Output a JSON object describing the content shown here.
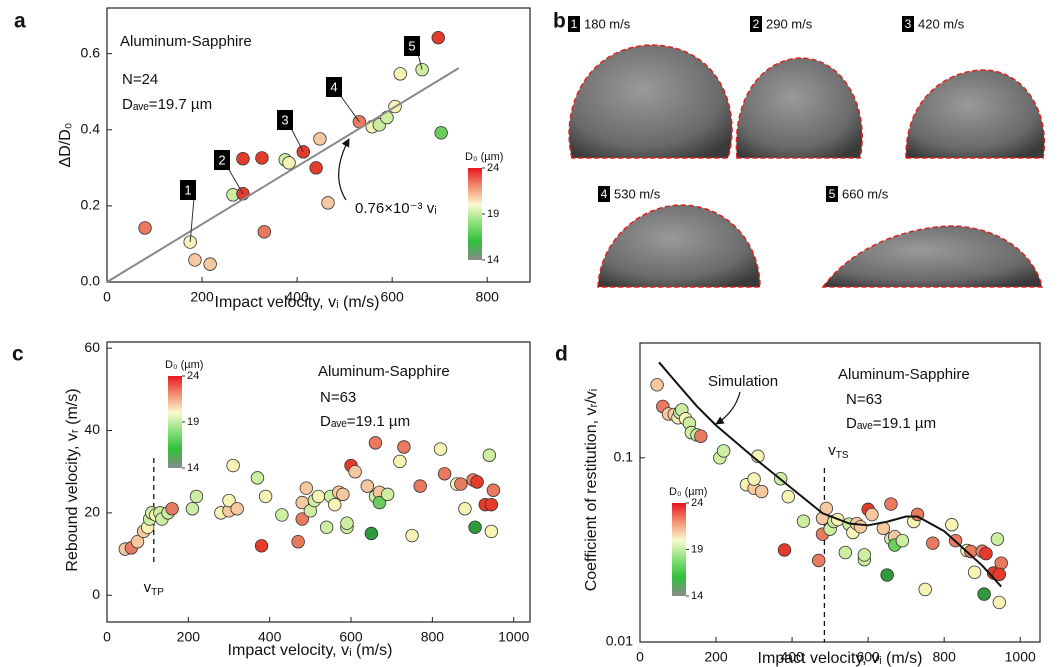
{
  "chart_data": [
    {
      "type": "scatter",
      "panel_label": "a",
      "x_label": "Impact velocity, vᵢ (m/s)",
      "y_label": "ΔD/D₀",
      "notes": [
        "Aluminum-Sapphire",
        "N=24",
        "Dₐᵥₑ=19.7 µm"
      ],
      "xlim": [
        0,
        890
      ],
      "xticks": [
        0,
        200,
        400,
        600,
        800
      ],
      "ylim": [
        0,
        0.72
      ],
      "yticks": [
        {
          "value": 0,
          "label": "0.0"
        },
        0.2,
        0.4,
        0.6
      ],
      "callouts": [
        "1",
        "2",
        "3",
        "4",
        "5"
      ],
      "series": [
        {
          "kind": "points",
          "x": [
            80,
            175,
            185,
            217,
            265,
            286,
            286,
            326,
            331,
            375,
            383,
            413,
            440,
            448,
            465,
            531,
            558,
            573,
            589,
            606,
            617,
            663,
            697,
            703
          ],
          "values": [
            0.142,
            0.105,
            0.058,
            0.047,
            0.229,
            0.232,
            0.324,
            0.326,
            0.132,
            0.321,
            0.313,
            0.342,
            0.3,
            0.376,
            0.208,
            0.421,
            0.408,
            0.413,
            0.432,
            0.461,
            0.547,
            0.558,
            0.642,
            0.392
          ],
          "colors": [
            "#ea7a5f",
            "#f6f3b5",
            "#f5c8a0",
            "#f5c8a0",
            "#cdeea0",
            "#e53b2c",
            "#e53b2c",
            "#e53b2c",
            "#ea7a5f",
            "#cdeea0",
            "#f6f3b5",
            "#e53b2c",
            "#e53b2c",
            "#f5c8a0",
            "#f5c8a0",
            "#ea7a5f",
            "#f6f3b5",
            "#cdeea0",
            "#cdeea0",
            "#f6f3b5",
            "#f6f3b5",
            "#cdeea0",
            "#e53b2c",
            "#6ccc5e"
          ]
        },
        {
          "kind": "line",
          "name": "0.76×10⁻³ vᵢ",
          "color": "#888888",
          "x": [
            0,
            740
          ],
          "values": [
            0,
            0.562
          ]
        }
      ],
      "colorbar": {
        "title": "D₀ (µm)",
        "lim": [
          14,
          24
        ],
        "ticks": [
          14,
          19,
          24
        ],
        "colors": [
          "#e8141e",
          "#f29070",
          "#fafad0",
          "#8be07a",
          "#2fbf3a",
          "#8a8a8a"
        ]
      }
    },
    {
      "type": "scatter",
      "panel_label": "c",
      "x_label": "Impact velocity, vᵢ (m/s)",
      "y_label": "Rebound velocity, vᵣ (m/s)",
      "notes": [
        "Aluminum-Sapphire",
        "N=63",
        "Dₐᵥₑ=19.1 µm"
      ],
      "xlim": [
        0,
        1040
      ],
      "xticks": [
        0,
        200,
        400,
        600,
        800,
        1000
      ],
      "ylim": [
        -6.5,
        61.5
      ],
      "yticks": [
        0,
        20,
        40,
        60
      ],
      "threshold": {
        "x": 115,
        "label": "v",
        "sub": "TP"
      },
      "series": [
        {
          "kind": "points",
          "x": [
            45,
            60,
            75,
            90,
            100,
            105,
            110,
            120,
            130,
            135,
            150,
            160,
            210,
            220,
            280,
            300,
            300,
            310,
            320,
            370,
            380,
            390,
            430,
            470,
            480,
            480,
            490,
            500,
            510,
            520,
            540,
            550,
            560,
            570,
            580,
            590,
            600,
            610,
            640,
            650,
            660,
            660,
            670,
            670,
            690,
            720,
            730,
            750,
            770,
            820,
            830,
            860,
            870,
            880,
            900,
            905,
            910,
            930,
            940,
            945,
            950,
            945,
            590
          ],
          "values": [
            11.2,
            11.5,
            13,
            15.5,
            16.5,
            18.5,
            20,
            19.5,
            20,
            18.5,
            20,
            21,
            21,
            24,
            20,
            20.5,
            23,
            31.5,
            21,
            28.5,
            12,
            24,
            19.5,
            13,
            18.5,
            22.5,
            26,
            20.5,
            23,
            24,
            16.5,
            24,
            22,
            25,
            24.5,
            16.5,
            31.5,
            30,
            26.5,
            15,
            37,
            24,
            25,
            22.5,
            24.5,
            32.5,
            36,
            14.5,
            26.5,
            35.5,
            29.5,
            27,
            27,
            21,
            28,
            16.5,
            27.5,
            22,
            34,
            15.5,
            25.5,
            22,
            17.5
          ],
          "colors": [
            "#f5c8a0",
            "#ea7a5f",
            "#f5c8a0",
            "#f5c8a0",
            "#f6f3b5",
            "#cdeea0",
            "#cdeea0",
            "#f6f3b5",
            "#cdeea0",
            "#cdeea0",
            "#cdeea0",
            "#ea7a5f",
            "#cdeea0",
            "#cdeea0",
            "#f6f3b5",
            "#f5c8a0",
            "#f6f3b5",
            "#f6f3b5",
            "#f5c8a0",
            "#cdeea0",
            "#e53b2c",
            "#f6f3b5",
            "#cdeea0",
            "#ea7a5f",
            "#ea7a5f",
            "#f5c8a0",
            "#f5c8a0",
            "#cdeea0",
            "#cdeea0",
            "#f6f3b5",
            "#cdeea0",
            "#cdeea0",
            "#f6f3b5",
            "#f5c8a0",
            "#f5c8a0",
            "#cdeea0",
            "#e53b2c",
            "#f5c8a0",
            "#f5c8a0",
            "#2f9a3c",
            "#ea7a5f",
            "#cdeea0",
            "#f5c8a0",
            "#6ccc5e",
            "#cdeea0",
            "#f6f3b5",
            "#ea7a5f",
            "#f6f3b5",
            "#ea7a5f",
            "#f6f3b5",
            "#ea7a5f",
            "#f6f3b5",
            "#ea7a5f",
            "#f6f3b5",
            "#ea7a5f",
            "#2f9a3c",
            "#e53b2c",
            "#e53b2c",
            "#cdeea0",
            "#f6f3b5",
            "#ea7a5f",
            "#e53b2c",
            "#cdeea0"
          ]
        }
      ],
      "colorbar": {
        "title": "D₀ (µm)",
        "lim": [
          14,
          24
        ],
        "ticks": [
          14,
          19,
          24
        ],
        "colors": [
          "#e8141e",
          "#f29070",
          "#fafad0",
          "#8be07a",
          "#2fbf3a",
          "#8a8a8a"
        ]
      }
    },
    {
      "type": "scatter",
      "panel_label": "d",
      "log_y": true,
      "x_label": "Impact velocity, vᵢ (m/s)",
      "y_label": "Coefficient of restitution, vᵣ/vᵢ",
      "notes": [
        "Aluminum-Sapphire",
        "N=63",
        "Dₐᵥₑ=19.1 µm"
      ],
      "xlim": [
        0,
        1052
      ],
      "xticks": [
        0,
        200,
        400,
        600,
        800,
        1000
      ],
      "ylim": [
        0.01,
        0.42
      ],
      "yticks": [
        0.01,
        0.1
      ],
      "threshold": {
        "x": 485,
        "label": "v",
        "sub": "TS"
      },
      "series": [
        {
          "kind": "points",
          "x": [
            45,
            60,
            75,
            90,
            100,
            105,
            110,
            120,
            130,
            135,
            150,
            160,
            210,
            220,
            280,
            300,
            300,
            310,
            320,
            370,
            380,
            390,
            430,
            470,
            480,
            480,
            490,
            500,
            510,
            520,
            540,
            550,
            560,
            570,
            580,
            590,
            600,
            610,
            640,
            650,
            660,
            660,
            670,
            670,
            690,
            720,
            730,
            750,
            770,
            820,
            830,
            860,
            870,
            880,
            900,
            905,
            910,
            930,
            940,
            945,
            950,
            945,
            590
          ],
          "values": [
            0.249,
            0.19,
            0.173,
            0.172,
            0.165,
            0.176,
            0.182,
            0.163,
            0.154,
            0.137,
            0.133,
            0.131,
            0.1,
            0.109,
            0.0714,
            0.0683,
            0.0767,
            0.102,
            0.0656,
            0.077,
            0.0316,
            0.0615,
            0.0453,
            0.0277,
            0.0385,
            0.0469,
            0.0531,
            0.041,
            0.0451,
            0.0462,
            0.0306,
            0.0436,
            0.0393,
            0.0439,
            0.0422,
            0.028,
            0.0525,
            0.0492,
            0.0414,
            0.0231,
            0.0561,
            0.0364,
            0.0373,
            0.0336,
            0.0355,
            0.0451,
            0.0493,
            0.0193,
            0.0344,
            0.0433,
            0.0355,
            0.0314,
            0.031,
            0.0239,
            0.0311,
            0.0182,
            0.0302,
            0.0237,
            0.0362,
            0.0164,
            0.0268,
            0.0233,
            0.0297
          ],
          "colors": [
            "#f5c8a0",
            "#ea7a5f",
            "#f5c8a0",
            "#f5c8a0",
            "#f6f3b5",
            "#cdeea0",
            "#cdeea0",
            "#f6f3b5",
            "#cdeea0",
            "#cdeea0",
            "#cdeea0",
            "#ea7a5f",
            "#cdeea0",
            "#cdeea0",
            "#f6f3b5",
            "#f5c8a0",
            "#f6f3b5",
            "#f6f3b5",
            "#f5c8a0",
            "#cdeea0",
            "#e53b2c",
            "#f6f3b5",
            "#cdeea0",
            "#ea7a5f",
            "#ea7a5f",
            "#f5c8a0",
            "#f5c8a0",
            "#cdeea0",
            "#cdeea0",
            "#f6f3b5",
            "#cdeea0",
            "#cdeea0",
            "#f6f3b5",
            "#f5c8a0",
            "#f5c8a0",
            "#cdeea0",
            "#e53b2c",
            "#f5c8a0",
            "#f5c8a0",
            "#2f9a3c",
            "#ea7a5f",
            "#cdeea0",
            "#f5c8a0",
            "#6ccc5e",
            "#cdeea0",
            "#f6f3b5",
            "#ea7a5f",
            "#f6f3b5",
            "#ea7a5f",
            "#f6f3b5",
            "#ea7a5f",
            "#f6f3b5",
            "#ea7a5f",
            "#f6f3b5",
            "#ea7a5f",
            "#2f9a3c",
            "#e53b2c",
            "#e53b2c",
            "#cdeea0",
            "#f6f3b5",
            "#ea7a5f",
            "#e53b2c",
            "#cdeea0"
          ]
        },
        {
          "kind": "line",
          "name": "Simulation",
          "color": "#111111",
          "x": [
            50,
            100,
            150,
            200,
            300,
            400,
            480,
            550,
            600,
            650,
            700,
            730,
            800,
            900,
            950
          ],
          "values": [
            0.33,
            0.25,
            0.19,
            0.15,
            0.1,
            0.068,
            0.05,
            0.044,
            0.043,
            0.045,
            0.048,
            0.048,
            0.04,
            0.026,
            0.02
          ]
        }
      ],
      "colorbar": {
        "title": "D₀ (µm)",
        "lim": [
          14,
          24
        ],
        "ticks": [
          14,
          19,
          24
        ],
        "colors": [
          "#e8141e",
          "#f29070",
          "#fafad0",
          "#8be07a",
          "#2fbf3a",
          "#8a8a8a"
        ]
      }
    }
  ],
  "panel_b": {
    "label": "b",
    "items": [
      {
        "number": "1",
        "text": "180 m/s"
      },
      {
        "number": "2",
        "text": "290 m/s"
      },
      {
        "number": "3",
        "text": "420 m/s"
      },
      {
        "number": "4",
        "text": "530 m/s"
      },
      {
        "number": "5",
        "text": "660 m/s"
      }
    ]
  }
}
